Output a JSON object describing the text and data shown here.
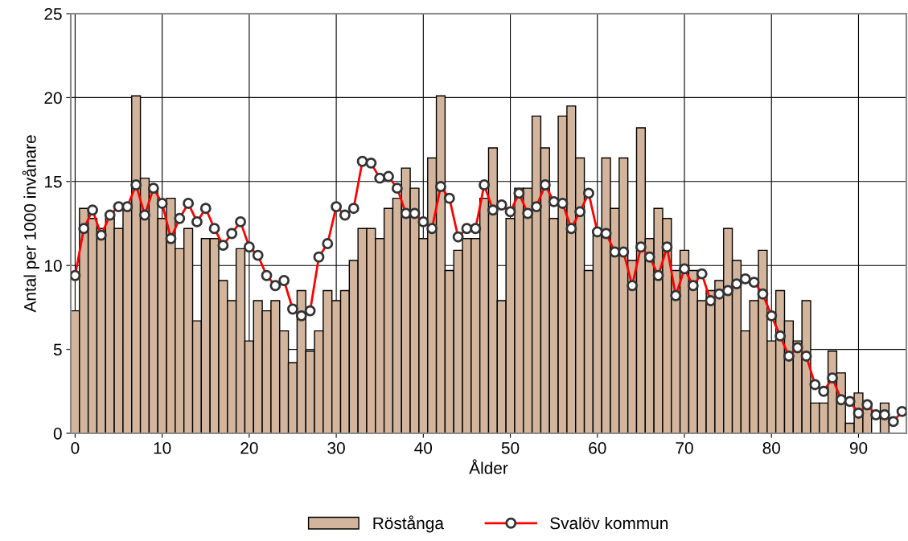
{
  "chart_data": {
    "type": "bar",
    "xlabel": "Ålder",
    "ylabel": "Antal per 1000 invånare",
    "x": [
      0,
      1,
      2,
      3,
      4,
      5,
      6,
      7,
      8,
      9,
      10,
      11,
      12,
      13,
      14,
      15,
      16,
      17,
      18,
      19,
      20,
      21,
      22,
      23,
      24,
      25,
      26,
      27,
      28,
      29,
      30,
      31,
      32,
      33,
      34,
      35,
      36,
      37,
      38,
      39,
      40,
      41,
      42,
      43,
      44,
      45,
      46,
      47,
      48,
      49,
      50,
      51,
      52,
      53,
      54,
      55,
      56,
      57,
      58,
      59,
      60,
      61,
      62,
      63,
      64,
      65,
      66,
      67,
      68,
      69,
      70,
      71,
      72,
      73,
      74,
      75,
      76,
      77,
      78,
      79,
      80,
      81,
      82,
      83,
      84,
      85,
      86,
      87,
      88,
      89,
      90,
      91,
      92,
      93,
      94,
      95
    ],
    "xlim": [
      -0.5,
      95.5
    ],
    "xticks": [
      0,
      10,
      20,
      30,
      40,
      50,
      60,
      70,
      80,
      90
    ],
    "ylim": [
      0,
      25
    ],
    "yticks": [
      0,
      5,
      10,
      15,
      20,
      25
    ],
    "grid": true,
    "legend": "bottom",
    "marker": "circle",
    "line_style": "solid",
    "series": [
      {
        "name": "Röstånga",
        "color": "#d2b59c",
        "values": [
          7.3,
          13.4,
          12.8,
          12.2,
          12.8,
          12.2,
          13.4,
          20.1,
          15.2,
          14.6,
          12.8,
          14.0,
          11.0,
          12.2,
          6.7,
          11.6,
          11.6,
          9.1,
          7.9,
          11.0,
          5.5,
          7.9,
          7.3,
          7.9,
          6.1,
          4.2,
          8.5,
          4.9,
          6.1,
          8.5,
          7.9,
          8.5,
          10.3,
          12.2,
          12.2,
          11.6,
          13.4,
          14.0,
          15.8,
          14.6,
          11.6,
          16.4,
          20.1,
          9.7,
          10.9,
          11.6,
          11.6,
          14.0,
          17.0,
          7.9,
          12.8,
          14.6,
          14.6,
          18.9,
          17.0,
          12.8,
          18.9,
          19.5,
          16.4,
          9.7,
          11.8,
          16.4,
          13.4,
          16.4,
          10.3,
          18.2,
          11.6,
          13.4,
          12.8,
          9.7,
          10.9,
          9.7,
          7.9,
          8.5,
          9.1,
          12.2,
          10.3,
          6.1,
          7.9,
          10.9,
          5.5,
          8.5,
          6.7,
          5.5,
          7.9,
          1.8,
          1.8,
          4.9,
          3.6,
          0.6,
          2.4,
          1.8,
          null,
          1.8,
          null,
          null
        ]
      },
      {
        "name": "Svalöv kommun",
        "type": "line",
        "color": "#ff0000",
        "values": [
          9.4,
          12.2,
          13.3,
          11.8,
          13.0,
          13.5,
          13.5,
          14.8,
          13.0,
          14.6,
          13.7,
          11.6,
          12.8,
          13.7,
          12.6,
          13.4,
          12.2,
          11.2,
          11.9,
          12.6,
          11.1,
          10.6,
          9.4,
          8.8,
          9.1,
          7.4,
          7.0,
          7.3,
          10.5,
          11.3,
          13.5,
          13.0,
          13.4,
          16.2,
          16.1,
          15.2,
          15.3,
          14.6,
          13.1,
          13.1,
          12.6,
          12.2,
          14.7,
          14.0,
          11.7,
          12.2,
          12.2,
          14.8,
          13.3,
          13.6,
          13.2,
          14.3,
          13.1,
          13.5,
          14.8,
          13.8,
          13.7,
          12.2,
          13.2,
          14.3,
          12.0,
          11.9,
          10.8,
          10.8,
          8.8,
          11.1,
          10.5,
          9.4,
          11.1,
          8.2,
          9.8,
          8.8,
          9.5,
          7.9,
          8.3,
          8.5,
          8.9,
          9.2,
          9.0,
          8.3,
          7.0,
          5.8,
          4.6,
          5.1,
          4.6,
          2.9,
          2.5,
          3.3,
          2.0,
          1.9,
          1.2,
          1.7,
          1.1,
          1.1,
          0.7,
          1.3
        ]
      }
    ]
  }
}
